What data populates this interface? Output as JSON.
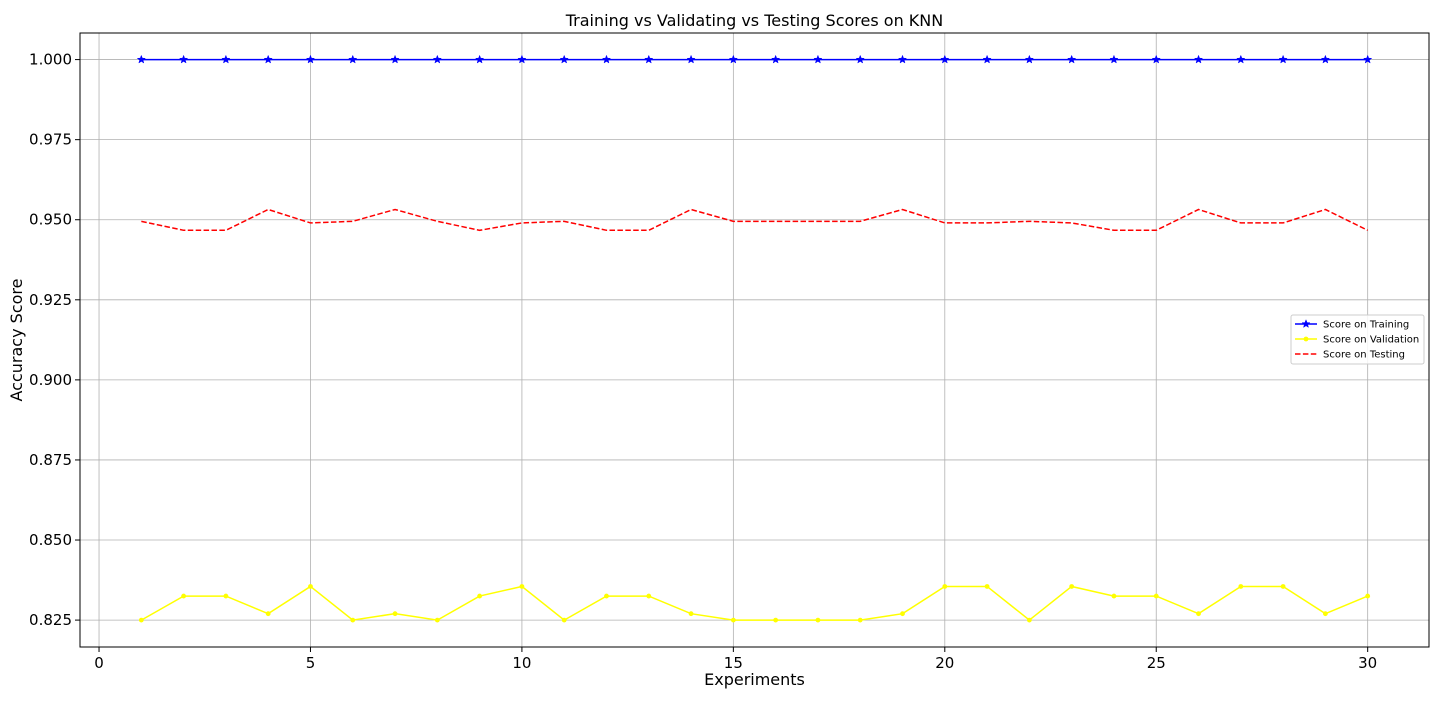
{
  "chart_data": {
    "type": "line",
    "title": "Training vs Validating vs Testing Scores on KNN",
    "xlabel": "Experiments",
    "ylabel": "Accuracy Score",
    "xlim": [
      -0.45,
      31.45
    ],
    "ylim": [
      0.8166,
      1.0083
    ],
    "xticks": [
      0,
      5,
      10,
      15,
      20,
      25,
      30
    ],
    "yticks": [
      0.825,
      0.85,
      0.875,
      0.9,
      0.925,
      0.95,
      0.975,
      1.0
    ],
    "ytick_labels": [
      "0.825",
      "0.850",
      "0.875",
      "0.900",
      "0.925",
      "0.950",
      "0.975",
      "1.000"
    ],
    "grid": true,
    "legend_position": "center-right",
    "x": [
      1,
      2,
      3,
      4,
      5,
      6,
      7,
      8,
      9,
      10,
      11,
      12,
      13,
      14,
      15,
      16,
      17,
      18,
      19,
      20,
      21,
      22,
      23,
      24,
      25,
      26,
      27,
      28,
      29,
      30
    ],
    "series": [
      {
        "name": "Score on Training",
        "color": "#0000ff",
        "line_style": "solid",
        "marker": "star",
        "values": [
          1.0,
          1.0,
          1.0,
          1.0,
          1.0,
          1.0,
          1.0,
          1.0,
          1.0,
          1.0,
          1.0,
          1.0,
          1.0,
          1.0,
          1.0,
          1.0,
          1.0,
          1.0,
          1.0,
          1.0,
          1.0,
          1.0,
          1.0,
          1.0,
          1.0,
          1.0,
          1.0,
          1.0,
          1.0,
          1.0
        ]
      },
      {
        "name": "Score on Validation",
        "color": "#ffff00",
        "line_style": "solid",
        "marker": "dot",
        "values": [
          0.825,
          0.8325,
          0.8325,
          0.827,
          0.8355,
          0.825,
          0.827,
          0.825,
          0.8325,
          0.8355,
          0.825,
          0.8325,
          0.8325,
          0.827,
          0.825,
          0.825,
          0.825,
          0.825,
          0.827,
          0.8355,
          0.8355,
          0.825,
          0.8355,
          0.8325,
          0.8325,
          0.827,
          0.8355,
          0.8355,
          0.827,
          0.8325
        ]
      },
      {
        "name": "Score on Testing",
        "color": "#ff0000",
        "line_style": "dashed",
        "marker": "none",
        "values": [
          0.9495,
          0.9467,
          0.9467,
          0.9532,
          0.949,
          0.9495,
          0.9532,
          0.9495,
          0.9467,
          0.949,
          0.9495,
          0.9467,
          0.9467,
          0.9532,
          0.9495,
          0.9495,
          0.9495,
          0.9495,
          0.9532,
          0.949,
          0.949,
          0.9495,
          0.949,
          0.9467,
          0.9467,
          0.9532,
          0.949,
          0.949,
          0.9532,
          0.9467
        ]
      }
    ]
  }
}
